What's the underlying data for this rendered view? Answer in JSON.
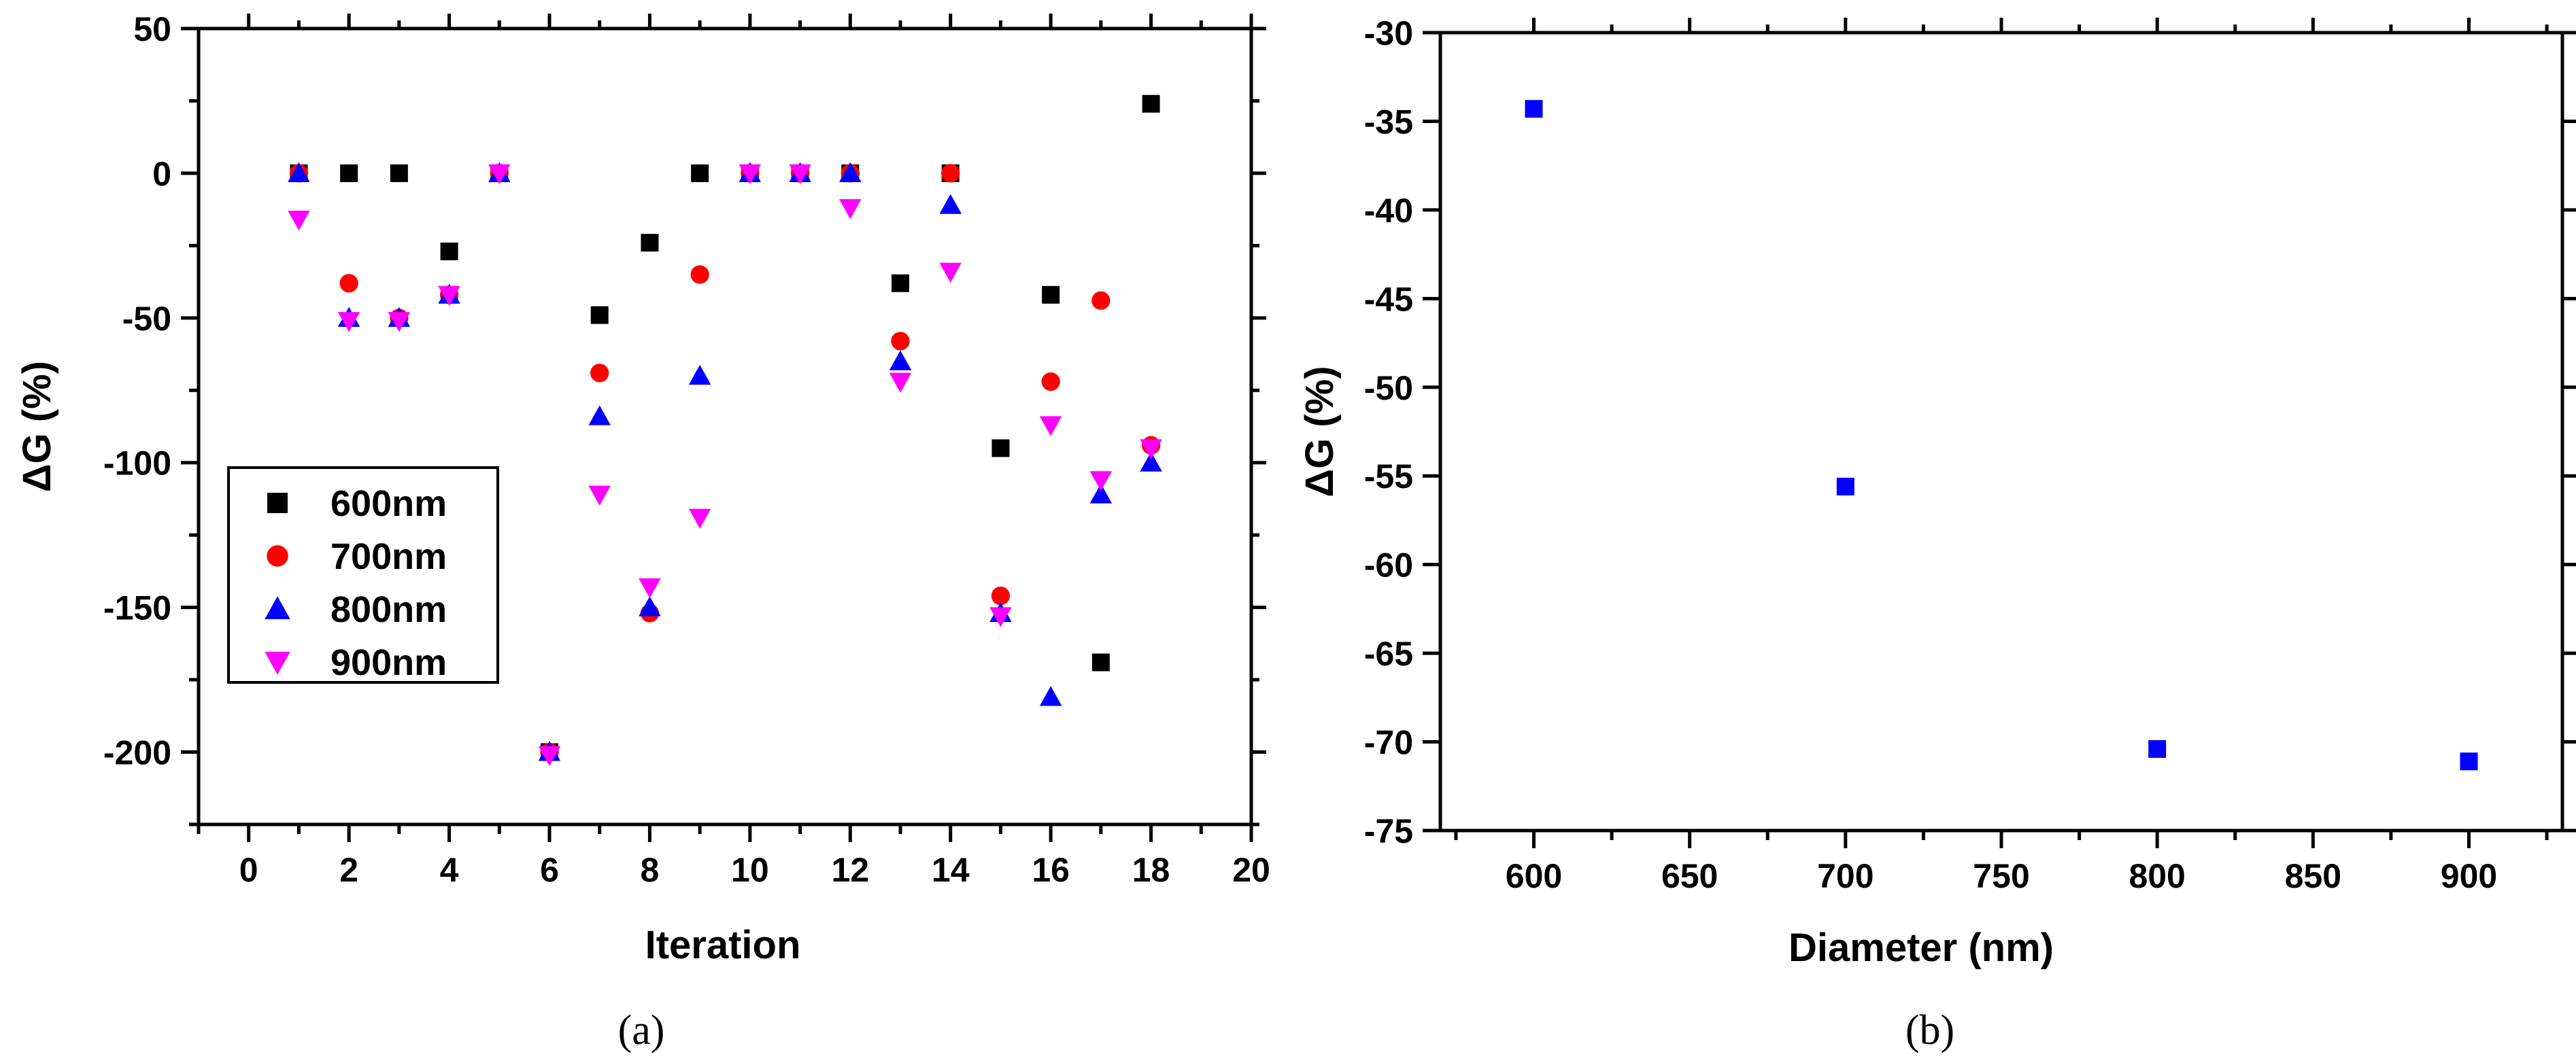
{
  "chart_data": [
    {
      "type": "scatter",
      "panel_label": "(a)",
      "xlabel": "Iteration",
      "ylabel": "ΔG (%)",
      "xlim": [
        -1,
        20
      ],
      "ylim": [
        -225,
        50
      ],
      "xticks": [
        0,
        2,
        4,
        6,
        8,
        10,
        12,
        14,
        16,
        18,
        20
      ],
      "yticks": [
        -200,
        -150,
        -100,
        -50,
        0,
        50
      ],
      "legend_position": "lower-left",
      "series": [
        {
          "name": "600nm",
          "marker": "square",
          "color": "#000000",
          "x": [
            1,
            2,
            3,
            4,
            5,
            6,
            7,
            8,
            9,
            10,
            11,
            12,
            13,
            14,
            15,
            16,
            17,
            18
          ],
          "y": [
            0,
            0,
            0,
            -27,
            0,
            -200,
            -49,
            -24,
            0,
            0,
            0,
            0,
            -38,
            0,
            -95,
            -42,
            -169,
            24
          ]
        },
        {
          "name": "700nm",
          "marker": "circle",
          "color": "#ff0000",
          "x": [
            1,
            2,
            3,
            4,
            5,
            6,
            7,
            8,
            9,
            10,
            11,
            12,
            13,
            14,
            15,
            16,
            17,
            18
          ],
          "y": [
            0,
            -38,
            -50,
            -42,
            0,
            -200,
            -69,
            -152,
            -35,
            0,
            0,
            0,
            -58,
            0,
            -146,
            -72,
            -44,
            -94
          ]
        },
        {
          "name": "800nm",
          "marker": "triangle-up",
          "color": "#0000ff",
          "x": [
            1,
            2,
            3,
            4,
            5,
            6,
            7,
            8,
            9,
            10,
            11,
            12,
            13,
            14,
            15,
            16,
            17,
            18
          ],
          "y": [
            0,
            -50,
            -50,
            -42,
            0,
            -200,
            -84,
            -150,
            -70,
            0,
            0,
            0,
            -65,
            -11,
            -152,
            -181,
            -111,
            -100
          ]
        },
        {
          "name": "900nm",
          "marker": "triangle-down",
          "color": "#ff00ff",
          "x": [
            1,
            2,
            3,
            4,
            5,
            6,
            7,
            8,
            9,
            10,
            11,
            12,
            13,
            14,
            15,
            16,
            17,
            18
          ],
          "y": [
            -16,
            -51,
            -51,
            -42,
            0,
            -201,
            -111,
            -143,
            -119,
            0,
            0,
            -12,
            -72,
            -34,
            -153,
            -87,
            -106,
            -95
          ]
        }
      ]
    },
    {
      "type": "scatter",
      "panel_label": "(b)",
      "xlabel": "Diameter (nm)",
      "ylabel": "ΔG (%)",
      "xlim": [
        570,
        930
      ],
      "ylim": [
        -75,
        -30
      ],
      "xticks": [
        600,
        650,
        700,
        750,
        800,
        850,
        900
      ],
      "yticks": [
        -75,
        -70,
        -65,
        -60,
        -55,
        -50,
        -45,
        -40,
        -35,
        -30
      ],
      "series": [
        {
          "marker": "square",
          "color": "#0000ff",
          "x": [
            600,
            700,
            800,
            900
          ],
          "y": [
            -34.3,
            -55.6,
            -70.4,
            -71.1
          ]
        }
      ]
    }
  ]
}
